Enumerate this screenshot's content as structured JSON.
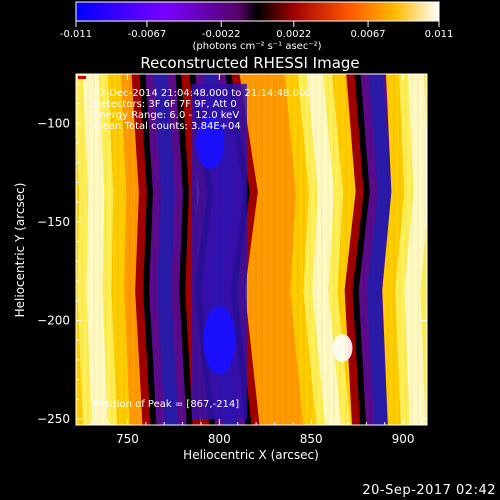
{
  "chart_data": {
    "type": "heatmap",
    "title": "Reconstructed RHESSI Image",
    "xlabel": "Heliocentric X (arcsec)",
    "ylabel": "Heliocentric Y (arcsec)",
    "xlim": [
      722,
      913
    ],
    "ylim": [
      -253,
      -75
    ],
    "xticks": [
      750,
      800,
      850,
      900
    ],
    "yticks": [
      -100,
      -150,
      -200,
      -250
    ],
    "colorbar": {
      "label": "(photons cm⁻² s⁻¹ asec⁻²)",
      "min": -0.011,
      "max": 0.011,
      "ticks": [
        "-0.011",
        "-0.0067",
        "-0.0022",
        "0.0022",
        "0.0067",
        "0.011"
      ]
    },
    "annotations": {
      "time": "27-Dec-2014 21:04:48.000 to 21:14:48.000",
      "detectors": "Detectors: 3F 6F 7F 9F, Att 0",
      "energy": "Energy Range: 6.0 - 12.0 keV",
      "method": "Clean     Total counts: 3.84E+04",
      "peak": "Position of Peak = [867,-214]"
    },
    "peak": [
      867,
      -214
    ],
    "ridges": [
      {
        "kind": "high",
        "x": [
          730,
          733,
          732,
          735
        ]
      },
      {
        "kind": "low",
        "x": [
          768,
          772,
          770,
          774
        ]
      },
      {
        "kind": "low",
        "x": [
          795,
          805,
          798,
          806
        ]
      },
      {
        "kind": "high",
        "x": [
          852,
          858,
          855,
          862
        ]
      },
      {
        "kind": "low",
        "x": [
          885,
          890,
          884,
          888
        ]
      },
      {
        "kind": "high",
        "x": [
          907,
          910,
          905,
          908
        ]
      }
    ]
  },
  "footer": {
    "date": "20-Sep-2017 02:42"
  },
  "colors": {
    "background": "#000000",
    "text": "#ffffff"
  }
}
